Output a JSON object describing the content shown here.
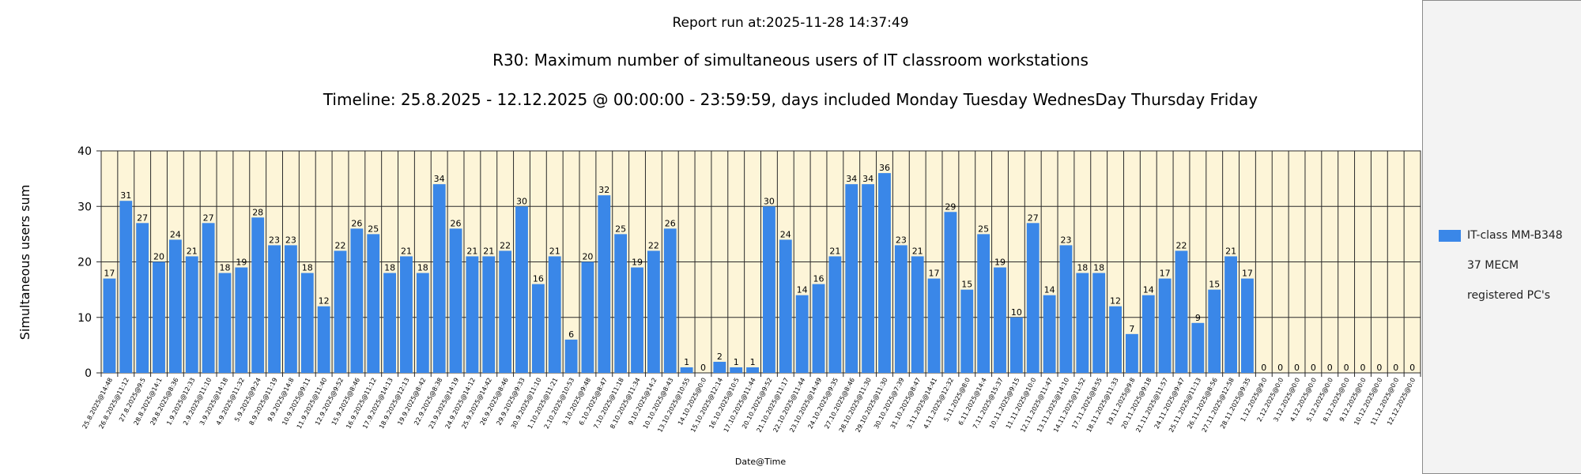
{
  "header": {
    "report_run": "Report run at:2025-11-28 14:37:49",
    "title": "R30: Maximum number of simultaneous users of IT classroom workstations",
    "timeline": "Timeline: 25.8.2025  - 12.12.2025  @  00:00:00 -  23:59:59, days included Monday Tuesday WednesDay Thursday Friday"
  },
  "legend": {
    "lines": [
      "IT-class MM-B348",
      "37 MECM",
      " registered PC's"
    ],
    "color": "#3a87e8"
  },
  "chart_data": {
    "type": "bar",
    "xlabel": "Date@Time",
    "ylabel": "Simultaneous users sum",
    "ylim": [
      0,
      40
    ],
    "yticks": [
      0,
      10,
      20,
      30,
      40
    ],
    "grid": true,
    "legend_position": "right",
    "bar_color": "#3a87e8",
    "plot_background": "#fdf5d8",
    "categories": [
      "25.8.2025@14:48",
      "26.8.2025@11:12",
      "27.8.2025@9:5",
      "28.8.2025@14:1",
      "29.8.2025@8:36",
      "1.9.2025@12:33",
      "2.9.2025@11:10",
      "3.9.2025@14:18",
      "4.9.2025@11:32",
      "5.9.2025@9:24",
      "8.9.2025@11:19",
      "9.9.2025@14:8",
      "10.9.2025@9:11",
      "11.9.2025@11:40",
      "12.9.2025@9:52",
      "15.9.2025@8:46",
      "16.9.2025@11:12",
      "17.9.2025@14:13",
      "18.9.2025@12:13",
      "19.9.2025@8:42",
      "22.9.2025@8:38",
      "23.9.2025@14:19",
      "24.9.2025@14:12",
      "25.9.2025@14:42",
      "26.9.2025@8:46",
      "29.9.2025@9:33",
      "30.9.2025@11:10",
      "1.10.2025@11:21",
      "2.10.2025@10:53",
      "3.10.2025@9:48",
      "6.10.2025@8:47",
      "7.10.2025@11:18",
      "8.10.2025@11:34",
      "9.10.2025@14:2",
      "10.10.2025@8:43",
      "13.10.2025@10:55",
      "14.10.2025@0:0",
      "15.10.2025@12:14",
      "16.10.2025@10:5",
      "17.10.2025@11:44",
      "20.10.2025@9:52",
      "21.10.2025@11:17",
      "22.10.2025@11:44",
      "23.10.2025@14:49",
      "24.10.2025@9:35",
      "27.10.2025@8:46",
      "28.10.2025@11:30",
      "29.10.2025@11:30",
      "30.10.2025@7:39",
      "31.10.2025@8:47",
      "3.11.2025@14:41",
      "4.11.2025@12:32",
      "5.11.2025@8:0",
      "6.11.2025@14:4",
      "7.11.2025@15:37",
      "10.11.2025@9:15",
      "11.11.2025@10:0",
      "12.11.2025@11:47",
      "13.11.2025@14:10",
      "14.11.2025@11:52",
      "17.11.2025@8:55",
      "18.11.2025@11:33",
      "19.11.2025@9:8",
      "20.11.2025@9:18",
      "21.11.2025@11:57",
      "24.11.2025@9:47",
      "25.11.2025@11:13",
      "26.11.2025@8:56",
      "27.11.2025@12:58",
      "28.11.2025@9:35",
      "1.12.2025@9:0",
      "2.12.2025@0:0",
      "3.12.2025@0:0",
      "4.12.2025@0:0",
      "5.12.2025@0:0",
      "8.12.2025@0:0",
      "9.12.2025@0:0",
      "10.12.2025@0:0",
      "11.12.2025@0:0",
      "12.12.2025@0:0"
    ],
    "values": [
      17,
      31,
      27,
      20,
      24,
      21,
      27,
      18,
      19,
      28,
      23,
      23,
      18,
      12,
      22,
      26,
      25,
      18,
      21,
      18,
      34,
      26,
      21,
      21,
      22,
      30,
      16,
      21,
      6,
      20,
      32,
      25,
      19,
      22,
      26,
      1,
      0,
      2,
      1,
      1,
      30,
      24,
      14,
      16,
      21,
      34,
      34,
      36,
      23,
      21,
      17,
      29,
      15,
      25,
      19,
      10,
      27,
      14,
      23,
      18,
      18,
      12,
      7,
      14,
      17,
      22,
      9,
      15,
      21,
      17,
      0,
      0,
      0,
      0,
      0,
      0,
      0,
      0,
      0,
      0
    ]
  }
}
